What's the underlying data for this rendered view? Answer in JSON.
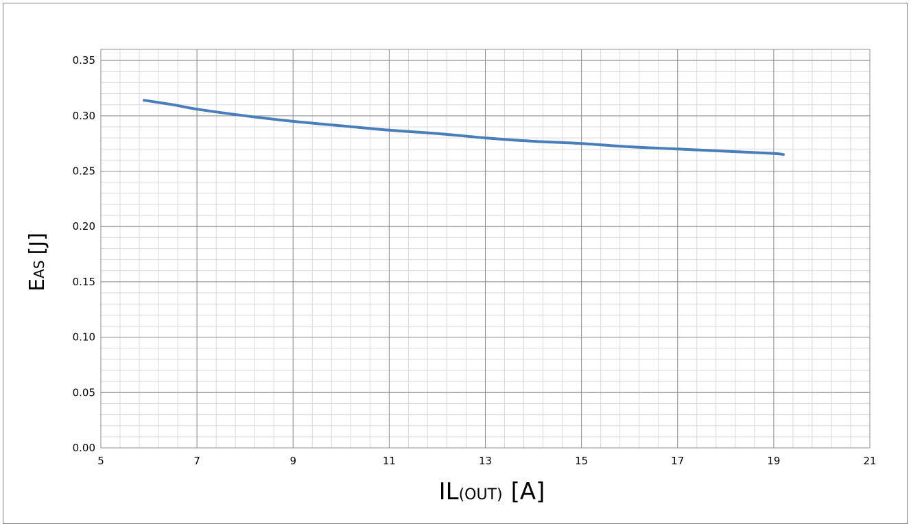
{
  "chart_data": {
    "type": "line",
    "title": "",
    "xlabel": {
      "main": "IL",
      "sub": "(OUT)",
      "unit": "[A]"
    },
    "ylabel": {
      "main": "E",
      "sub": "AS",
      "unit": "[J]"
    },
    "xlim": [
      5,
      21
    ],
    "ylim": [
      0,
      0.36
    ],
    "x_ticks": [
      5,
      7,
      9,
      11,
      13,
      15,
      17,
      19,
      21
    ],
    "y_ticks": [
      0.0,
      0.05,
      0.1,
      0.15,
      0.2,
      0.25,
      0.3,
      0.35
    ],
    "x_tick_labels": [
      "5",
      "7",
      "9",
      "11",
      "13",
      "15",
      "17",
      "19",
      "21"
    ],
    "y_tick_labels": [
      "0.00",
      "0.05",
      "0.10",
      "0.15",
      "0.20",
      "0.25",
      "0.30",
      "0.35"
    ],
    "x_minor_step": 0.4,
    "y_minor_step": 0.01,
    "grid": true,
    "legend": "none",
    "series": [
      {
        "color": "#4a7ebb",
        "x": [
          5.9,
          6.5,
          7.0,
          8.0,
          9.0,
          10.0,
          11.0,
          12.0,
          13.0,
          14.0,
          15.0,
          16.0,
          17.0,
          18.0,
          19.0,
          19.2
        ],
        "y": [
          0.314,
          0.31,
          0.306,
          0.3,
          0.295,
          0.291,
          0.287,
          0.284,
          0.28,
          0.277,
          0.275,
          0.272,
          0.27,
          0.268,
          0.266,
          0.265
        ]
      }
    ]
  }
}
